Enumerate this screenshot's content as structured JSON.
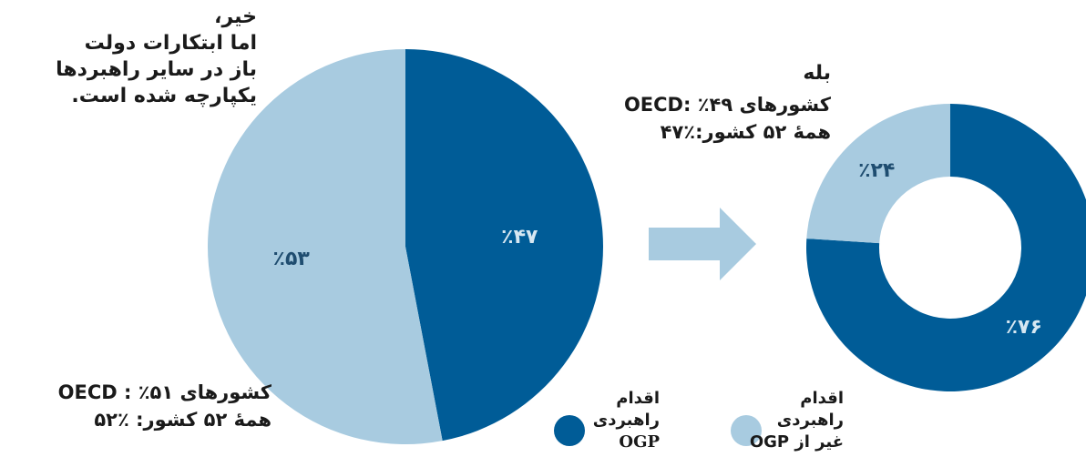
{
  "colors": {
    "dark": "#005c97",
    "light": "#a8cbe0",
    "arrow": "#a8cbe0",
    "label_dark_text": "#d6e7f2",
    "label_light_text": "#1f4d70"
  },
  "left_note": {
    "lines": [
      "خیر،",
      "اما ابتکارات دولت",
      "باز در سایر راهبردها",
      "یکپارچه شده است."
    ]
  },
  "left_stats": {
    "line1": "کشورهای OECD : ٪۵۱",
    "line2": "همهٔ ۵۲ کشور: ٪۵۲"
  },
  "right_note": {
    "title": "بله",
    "line1": "کشورهای OECD: ٪۴۹",
    "line2": "همهٔ ۵۲ کشور:٪۴۷"
  },
  "legend": {
    "ogp": {
      "lines": [
        "اقدام",
        "راهبردی",
        "OGP"
      ]
    },
    "non_ogp": {
      "lines": [
        "اقدام",
        "راهبردی",
        "غیر از OGP"
      ]
    }
  },
  "chart_data": [
    {
      "type": "pie",
      "slices": [
        {
          "label": "٪۴۷",
          "value": 47,
          "color": "#005c97"
        },
        {
          "label": "٪۵۳",
          "value": 53,
          "color": "#a8cbe0"
        }
      ]
    },
    {
      "type": "pie",
      "donut": true,
      "slices": [
        {
          "label": "٪۷۶",
          "value": 76,
          "color": "#005c97"
        },
        {
          "label": "٪۲۴",
          "value": 24,
          "color": "#a8cbe0"
        }
      ]
    }
  ]
}
